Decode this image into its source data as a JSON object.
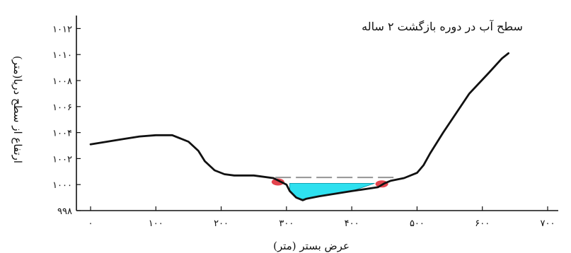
{
  "chart_data": {
    "type": "line",
    "title": "سطح آب در دوره بازگشت ۲ ساله",
    "xlabel": "عرض بستر (متر)",
    "ylabel": "ارتفاع از سطح دریا(متر)",
    "xlim": [
      0,
      700
    ],
    "ylim": [
      998,
      1013
    ],
    "x_ticks": [
      0,
      100,
      200,
      300,
      400,
      500,
      600,
      700
    ],
    "x_tick_labels": [
      "۰",
      "۱۰۰",
      "۲۰۰",
      "۳۰۰",
      "۴۰۰",
      "۵۰۰",
      "۶۰۰",
      "۷۰۰"
    ],
    "y_ticks": [
      998,
      1000,
      1002,
      1004,
      1006,
      1008,
      1010,
      1012
    ],
    "y_tick_labels": [
      "۹۹۸",
      "۱۰۰۰",
      "۱۰۰۲",
      "۱۰۰۴",
      "۱۰۰۶",
      "۱۰۰۸",
      "۱۰۱۰",
      "۱۰۱۲"
    ],
    "grid": false,
    "series": [
      {
        "role": "ground-profile",
        "color": "#111111",
        "x": [
          0,
          25,
          50,
          75,
          100,
          125,
          150,
          165,
          175,
          190,
          205,
          220,
          230,
          250,
          280,
          300,
          305,
          315,
          325,
          330,
          350,
          400,
          440,
          450,
          460,
          480,
          500,
          510,
          520,
          540,
          560,
          580,
          610,
          630,
          640
        ],
        "y": [
          1003.1,
          1003.3,
          1003.5,
          1003.7,
          1003.8,
          1003.8,
          1003.3,
          1002.6,
          1001.8,
          1001.1,
          1000.8,
          1000.7,
          1000.7,
          1000.7,
          1000.5,
          1000.0,
          999.5,
          999.0,
          998.8,
          998.9,
          999.1,
          999.5,
          999.8,
          1000.1,
          1000.3,
          1000.5,
          1000.9,
          1001.5,
          1002.4,
          1004.0,
          1005.5,
          1007.0,
          1008.6,
          1009.7,
          1010.1
        ]
      },
      {
        "role": "water-surface",
        "color": "#9a9a9a",
        "dashed": true,
        "x": [
          283,
          464
        ],
        "y": [
          1000.55,
          1000.55
        ]
      }
    ],
    "water_area": {
      "color": "#2ee0ef",
      "top": 1000.1,
      "x": [
        305,
        315,
        325,
        330,
        350,
        400,
        435
      ],
      "y": [
        999.5,
        999.0,
        998.8,
        998.9,
        999.1,
        999.5,
        1000.1
      ]
    },
    "bank_markers": {
      "color": "#e0303a",
      "points": [
        {
          "x": 287,
          "y": 1000.2
        },
        {
          "x": 446,
          "y": 1000.05
        }
      ]
    }
  }
}
